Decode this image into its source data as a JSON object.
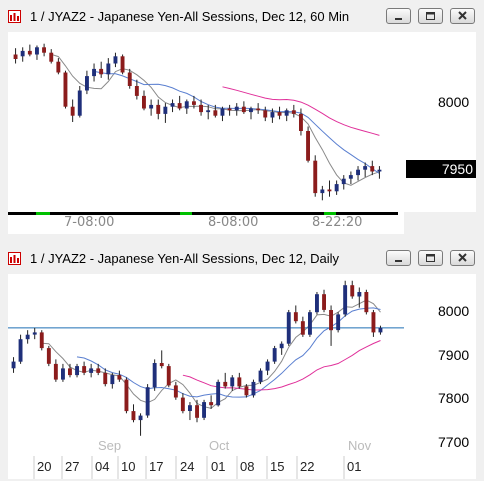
{
  "window1": {
    "title": "1 / JYAZ2 - Japanese Yen-All Sessions, Dec 12, 60 Min",
    "y_labels": [
      "8000"
    ],
    "last_price": "7950",
    "x_labels": [
      "7-08:00",
      "8-08:00",
      "8-22:20"
    ]
  },
  "window2": {
    "title": "1 / JYAZ2 - Japanese Yen-All Sessions, Dec 12, Daily",
    "y_labels": [
      "8000",
      "7900",
      "7800",
      "7700"
    ],
    "month_labels": [
      "Sep",
      "Oct",
      "Nov"
    ],
    "day_labels": [
      "20",
      "27",
      "04",
      "10",
      "17",
      "24",
      "01",
      "08",
      "15",
      "22",
      "01"
    ]
  },
  "colors": {
    "up": "#1f2f7a",
    "down": "#8b1c1c",
    "ma_pink": "#e0309a",
    "ma_blue": "#5a7fd0",
    "ma_gray": "#8a8a8a",
    "hline": "#1f6fb5",
    "session_green": "#00c000"
  },
  "chart_data": [
    {
      "type": "candlestick",
      "title": "1 / JYAZ2 - Japanese Yen-All Sessions, Dec 12, 60 Min",
      "ytick_labels": [
        "8000"
      ],
      "xtick_labels": [
        "7-08:00",
        "8-08:00",
        "8-22:20"
      ],
      "ylim": [
        7905,
        8105
      ],
      "last": 7950,
      "ohlc": [
        [
          8080,
          8087,
          8070,
          8075
        ],
        [
          8078,
          8088,
          8072,
          8084
        ],
        [
          8084,
          8091,
          8078,
          8080
        ],
        [
          8080,
          8090,
          8074,
          8088
        ],
        [
          8088,
          8092,
          8078,
          8082
        ],
        [
          8082,
          8086,
          8070,
          8072
        ],
        [
          8072,
          8076,
          8058,
          8060
        ],
        [
          8060,
          8062,
          8020,
          8022
        ],
        [
          8022,
          8030,
          8005,
          8012
        ],
        [
          8012,
          8045,
          8010,
          8040
        ],
        [
          8040,
          8062,
          8036,
          8056
        ],
        [
          8056,
          8070,
          8050,
          8064
        ],
        [
          8064,
          8072,
          8054,
          8058
        ],
        [
          8058,
          8076,
          8052,
          8070
        ],
        [
          8070,
          8082,
          8066,
          8078
        ],
        [
          8078,
          8080,
          8058,
          8060
        ],
        [
          8060,
          8064,
          8042,
          8045
        ],
        [
          8045,
          8052,
          8030,
          8034
        ],
        [
          8034,
          8040,
          8018,
          8020
        ],
        [
          8020,
          8030,
          8012,
          8024
        ],
        [
          8024,
          8030,
          8008,
          8014
        ],
        [
          8014,
          8026,
          8004,
          8022
        ],
        [
          8022,
          8030,
          8016,
          8026
        ],
        [
          8026,
          8034,
          8018,
          8020
        ],
        [
          8020,
          8030,
          8014,
          8028
        ],
        [
          8028,
          8034,
          8020,
          8024
        ],
        [
          8024,
          8030,
          8012,
          8016
        ],
        [
          8016,
          8024,
          8008,
          8018
        ],
        [
          8018,
          8024,
          8010,
          8012
        ],
        [
          8012,
          8022,
          8006,
          8020
        ],
        [
          8020,
          8024,
          8012,
          8018
        ],
        [
          8018,
          8026,
          8012,
          8022
        ],
        [
          8022,
          8028,
          8014,
          8016
        ],
        [
          8016,
          8022,
          8008,
          8020
        ],
        [
          8020,
          8026,
          8014,
          8018
        ],
        [
          8018,
          8022,
          8006,
          8010
        ],
        [
          8010,
          8020,
          8004,
          8016
        ],
        [
          8016,
          8022,
          8008,
          8012
        ],
        [
          8012,
          8020,
          8006,
          8018
        ],
        [
          8018,
          8024,
          8010,
          8014
        ],
        [
          8014,
          8020,
          7990,
          7995
        ],
        [
          7995,
          8000,
          7960,
          7962
        ],
        [
          7962,
          7968,
          7922,
          7926
        ],
        [
          7926,
          7934,
          7918,
          7930
        ],
        [
          7930,
          7940,
          7922,
          7928
        ],
        [
          7928,
          7940,
          7924,
          7936
        ],
        [
          7936,
          7946,
          7930,
          7942
        ],
        [
          7942,
          7950,
          7936,
          7946
        ],
        [
          7946,
          7956,
          7940,
          7952
        ],
        [
          7952,
          7960,
          7944,
          7956
        ],
        [
          7956,
          7962,
          7946,
          7950
        ],
        [
          7950,
          7956,
          7942,
          7952
        ]
      ]
    },
    {
      "type": "candlestick",
      "title": "1 / JYAZ2 - Japanese Yen-All Sessions, Dec 12, Daily",
      "ytick_labels": [
        "8000",
        "7900",
        "7800",
        "7700"
      ],
      "xtick_labels": [
        "20",
        "27",
        "04",
        "10",
        "17",
        "24",
        "01",
        "08",
        "15",
        "22",
        "01"
      ],
      "months": [
        "Sep",
        "Oct",
        "Nov"
      ],
      "ylim": [
        7665,
        8070
      ],
      "ohlc": [
        [
          7860,
          7885,
          7850,
          7875
        ],
        [
          7875,
          7935,
          7870,
          7925
        ],
        [
          7925,
          7945,
          7915,
          7935
        ],
        [
          7935,
          7950,
          7925,
          7940
        ],
        [
          7940,
          7945,
          7900,
          7905
        ],
        [
          7905,
          7910,
          7865,
          7870
        ],
        [
          7870,
          7880,
          7830,
          7835
        ],
        [
          7835,
          7870,
          7830,
          7860
        ],
        [
          7860,
          7870,
          7840,
          7845
        ],
        [
          7845,
          7870,
          7840,
          7865
        ],
        [
          7865,
          7875,
          7845,
          7850
        ],
        [
          7850,
          7870,
          7840,
          7860
        ],
        [
          7860,
          7870,
          7845,
          7850
        ],
        [
          7850,
          7860,
          7820,
          7825
        ],
        [
          7825,
          7850,
          7815,
          7845
        ],
        [
          7845,
          7855,
          7830,
          7835
        ],
        [
          7835,
          7840,
          7760,
          7765
        ],
        [
          7765,
          7780,
          7740,
          7745
        ],
        [
          7745,
          7760,
          7710,
          7755
        ],
        [
          7755,
          7825,
          7750,
          7818
        ],
        [
          7818,
          7880,
          7810,
          7872
        ],
        [
          7872,
          7900,
          7860,
          7865
        ],
        [
          7865,
          7870,
          7818,
          7822
        ],
        [
          7822,
          7830,
          7790,
          7795
        ],
        [
          7795,
          7805,
          7760,
          7765
        ],
        [
          7765,
          7785,
          7745,
          7778
        ],
        [
          7778,
          7790,
          7740,
          7750
        ],
        [
          7750,
          7790,
          7745,
          7785
        ],
        [
          7785,
          7800,
          7770,
          7778
        ],
        [
          7778,
          7835,
          7775,
          7830
        ],
        [
          7830,
          7850,
          7815,
          7820
        ],
        [
          7820,
          7845,
          7810,
          7840
        ],
        [
          7840,
          7850,
          7815,
          7820
        ],
        [
          7820,
          7825,
          7795,
          7800
        ],
        [
          7800,
          7835,
          7795,
          7830
        ],
        [
          7830,
          7860,
          7825,
          7855
        ],
        [
          7855,
          7880,
          7845,
          7875
        ],
        [
          7875,
          7910,
          7870,
          7905
        ],
        [
          7905,
          7920,
          7890,
          7915
        ],
        [
          7915,
          7990,
          7910,
          7985
        ],
        [
          7985,
          8000,
          7960,
          7965
        ],
        [
          7965,
          7975,
          7930,
          7935
        ],
        [
          7935,
          7990,
          7930,
          7985
        ],
        [
          7985,
          8030,
          7980,
          8025
        ],
        [
          8025,
          8035,
          7985,
          7990
        ],
        [
          7990,
          8000,
          7910,
          7945
        ],
        [
          7945,
          7985,
          7940,
          7980
        ],
        [
          7980,
          8055,
          7975,
          8045
        ],
        [
          8045,
          8055,
          8015,
          8020
        ],
        [
          8020,
          8040,
          7995,
          8030
        ],
        [
          8030,
          8035,
          7980,
          7985
        ],
        [
          7985,
          7990,
          7930,
          7940
        ],
        [
          7940,
          7955,
          7935,
          7950
        ]
      ],
      "hline": 7950
    }
  ]
}
